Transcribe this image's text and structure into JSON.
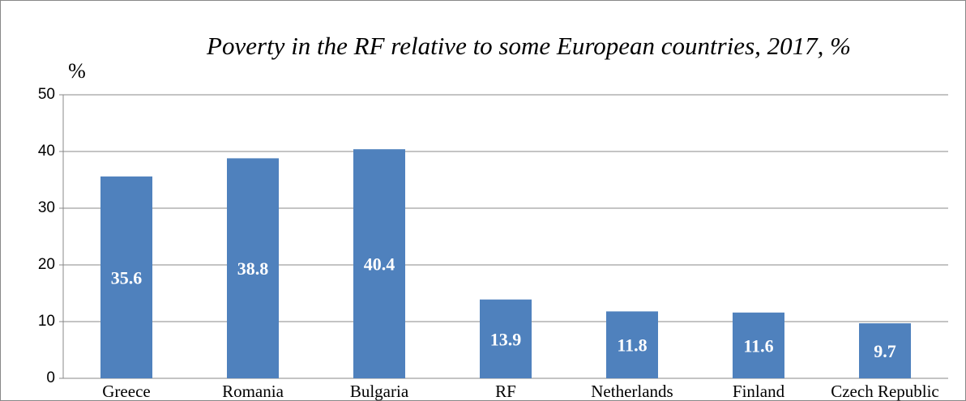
{
  "chart_data": {
    "type": "bar",
    "title": "Poverty in the RF relative to some European countries, 2017, %",
    "y_label": "%",
    "categories": [
      "Greece",
      "Romania",
      "Bulgaria",
      "RF",
      "Netherlands",
      "Finland",
      "Czech Republic"
    ],
    "values": [
      35.6,
      38.8,
      40.4,
      13.9,
      11.8,
      11.6,
      9.7
    ],
    "color": "#4f81bd",
    "ylim": [
      0,
      50
    ],
    "yticks": [
      0,
      10,
      20,
      30,
      40,
      50
    ],
    "grid": true
  }
}
